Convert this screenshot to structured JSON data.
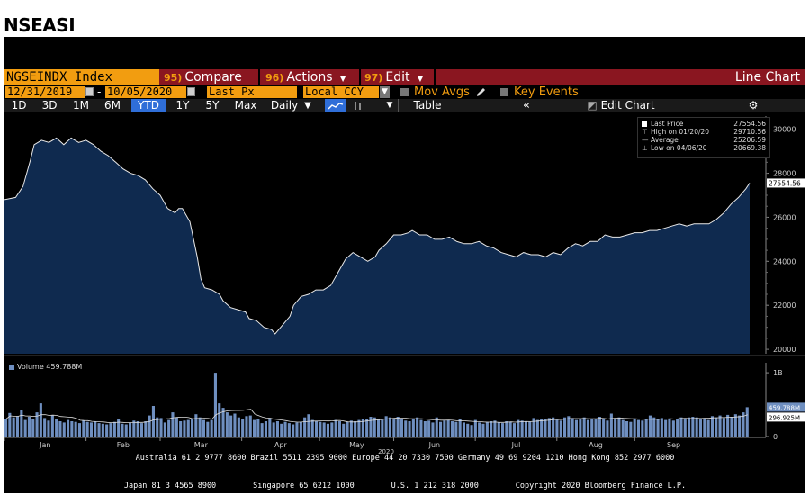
{
  "page_title": "NSEASI",
  "toolbar": {
    "ticker": "NGSEINDX Index",
    "compare": {
      "num": "95)",
      "label": "Compare"
    },
    "actions": {
      "num": "96)",
      "label": "Actions"
    },
    "edit": {
      "num": "97)",
      "label": "Edit"
    },
    "chart_type": "Line Chart"
  },
  "settings": {
    "start_date": "12/31/2019",
    "end_date": "10/05/2020",
    "price_field": "Last Px",
    "currency": "Local CCY",
    "mov_avgs": "Mov Avgs",
    "key_events": "Key Events"
  },
  "periods": [
    "1D",
    "3D",
    "1M",
    "6M",
    "YTD",
    "1Y",
    "5Y",
    "Max"
  ],
  "active_period": "YTD",
  "frequency": "Daily",
  "table_label": "Table",
  "edit_chart_label": "Edit Chart",
  "legend": {
    "last_price_label": "Last Price",
    "last_price": "27554.56",
    "high_label": "High on 01/20/20",
    "high": "29710.56",
    "average_label": "Average",
    "average": "25206.59",
    "low_label": "Low on 04/06/20",
    "low": "20669.38"
  },
  "last_price_tag": "27554.56",
  "volume": {
    "legend": "Volume 459.788M",
    "last_tag": "459.788M",
    "avg_tag": "296.925M",
    "axis_ticks": [
      "1B",
      "0"
    ]
  },
  "footer": {
    "line1": "Australia 61 2 9777 8600 Brazil 5511 2395 9000 Europe 44 20 7330 7500 Germany 49 69 9204 1210 Hong Kong 852 2977 6000",
    "line2": "Japan 81 3 4565 8900        Singapore 65 6212 1000        U.S. 1 212 318 2000        Copyright 2020 Bloomberg Finance L.P."
  },
  "colors": {
    "ticker_bg": "#f29d10",
    "header_bg": "#8a1620",
    "active_tab": "#2f6ed8",
    "area_fill": "#0f2a4f",
    "line": "#e8e8e8",
    "volume_bar": "#6f8fc0"
  },
  "chart_data": {
    "type": "area",
    "title": "",
    "y_ticks": [
      20000,
      22000,
      24000,
      26000,
      28000,
      30000
    ],
    "ylim": [
      19800,
      30600
    ],
    "x_month_labels": [
      "Jan",
      "Feb",
      "Mar",
      "Apr",
      "May",
      "Jun",
      "Jul",
      "Aug",
      "Sep"
    ],
    "x_year_label": "2020",
    "price_series": [
      [
        0,
        26800
      ],
      [
        3,
        26900
      ],
      [
        5,
        27400
      ],
      [
        7,
        28600
      ],
      [
        8,
        29300
      ],
      [
        10,
        29500
      ],
      [
        12,
        29400
      ],
      [
        14,
        29600
      ],
      [
        16,
        29300
      ],
      [
        18,
        29600
      ],
      [
        20,
        29400
      ],
      [
        22,
        29500
      ],
      [
        24,
        29300
      ],
      [
        26,
        29000
      ],
      [
        28,
        28800
      ],
      [
        30,
        28500
      ],
      [
        32,
        28200
      ],
      [
        34,
        28000
      ],
      [
        36,
        27900
      ],
      [
        38,
        27700
      ],
      [
        40,
        27300
      ],
      [
        42,
        27000
      ],
      [
        44,
        26400
      ],
      [
        46,
        26200
      ],
      [
        47,
        26400
      ],
      [
        48,
        26400
      ],
      [
        50,
        25800
      ],
      [
        51,
        25000
      ],
      [
        52,
        24200
      ],
      [
        53,
        23200
      ],
      [
        54,
        22800
      ],
      [
        56,
        22700
      ],
      [
        58,
        22500
      ],
      [
        59,
        22200
      ],
      [
        61,
        21900
      ],
      [
        63,
        21800
      ],
      [
        65,
        21700
      ],
      [
        66,
        21400
      ],
      [
        68,
        21300
      ],
      [
        70,
        21000
      ],
      [
        72,
        20900
      ],
      [
        73,
        20700
      ],
      [
        75,
        21100
      ],
      [
        77,
        21500
      ],
      [
        78,
        22000
      ],
      [
        80,
        22400
      ],
      [
        82,
        22500
      ],
      [
        84,
        22700
      ],
      [
        86,
        22700
      ],
      [
        88,
        22900
      ],
      [
        90,
        23500
      ],
      [
        92,
        24100
      ],
      [
        94,
        24400
      ],
      [
        96,
        24200
      ],
      [
        98,
        24000
      ],
      [
        100,
        24200
      ],
      [
        101,
        24500
      ],
      [
        103,
        24800
      ],
      [
        105,
        25200
      ],
      [
        107,
        25200
      ],
      [
        109,
        25300
      ],
      [
        110,
        25400
      ],
      [
        112,
        25200
      ],
      [
        114,
        25200
      ],
      [
        116,
        25000
      ],
      [
        118,
        25000
      ],
      [
        120,
        25100
      ],
      [
        122,
        24900
      ],
      [
        124,
        24800
      ],
      [
        126,
        24800
      ],
      [
        128,
        24900
      ],
      [
        130,
        24700
      ],
      [
        132,
        24600
      ],
      [
        134,
        24400
      ],
      [
        136,
        24300
      ],
      [
        138,
        24200
      ],
      [
        140,
        24400
      ],
      [
        142,
        24300
      ],
      [
        144,
        24300
      ],
      [
        146,
        24200
      ],
      [
        148,
        24400
      ],
      [
        150,
        24300
      ],
      [
        152,
        24600
      ],
      [
        154,
        24800
      ],
      [
        156,
        24700
      ],
      [
        158,
        24900
      ],
      [
        160,
        24900
      ],
      [
        162,
        25200
      ],
      [
        164,
        25100
      ],
      [
        166,
        25100
      ],
      [
        168,
        25200
      ],
      [
        170,
        25300
      ],
      [
        172,
        25300
      ],
      [
        174,
        25400
      ],
      [
        176,
        25400
      ],
      [
        178,
        25500
      ],
      [
        180,
        25600
      ],
      [
        182,
        25700
      ],
      [
        184,
        25600
      ],
      [
        186,
        25700
      ],
      [
        188,
        25700
      ],
      [
        190,
        25700
      ],
      [
        192,
        25900
      ],
      [
        194,
        26200
      ],
      [
        196,
        26600
      ],
      [
        198,
        26900
      ],
      [
        200,
        27300
      ],
      [
        201,
        27554.56
      ]
    ],
    "volume_series_millions": [
      280,
      370,
      300,
      320,
      410,
      260,
      310,
      280,
      380,
      520,
      290,
      250,
      330,
      280,
      240,
      220,
      260,
      240,
      230,
      210,
      250,
      230,
      220,
      240,
      210,
      200,
      190,
      210,
      230,
      280,
      200,
      190,
      220,
      250,
      240,
      210,
      240,
      330,
      480,
      300,
      290,
      220,
      260,
      380,
      300,
      240,
      250,
      260,
      280,
      350,
      300,
      260,
      230,
      260,
      1000,
      520,
      450,
      380,
      330,
      360,
      300,
      280,
      320,
      330,
      260,
      280,
      210,
      240,
      290,
      220,
      240,
      200,
      230,
      210,
      190,
      220,
      230,
      300,
      350,
      260,
      240,
      230,
      220,
      200,
      220,
      260,
      240,
      200,
      230,
      250,
      240,
      260,
      270,
      280,
      310,
      300,
      280,
      260,
      320,
      300,
      280,
      310,
      270,
      250,
      240,
      280,
      300,
      260,
      240,
      250,
      220,
      300,
      230,
      250,
      260,
      240,
      230,
      270,
      220,
      200,
      180,
      260,
      220,
      200,
      230,
      240,
      250,
      220,
      210,
      240,
      230,
      210,
      260,
      250,
      240,
      230,
      290,
      260,
      270,
      280,
      290,
      300,
      260,
      250,
      300,
      320,
      290,
      260,
      270,
      300,
      260,
      280,
      270,
      310,
      280,
      250,
      360,
      290,
      300,
      260,
      240,
      230,
      280,
      260,
      250,
      270,
      330,
      300,
      280,
      290,
      260,
      270,
      250,
      280,
      300,
      290,
      300,
      310,
      300,
      280,
      290,
      260,
      320,
      300,
      330,
      290,
      340,
      310,
      350,
      330,
      380,
      460
    ]
  }
}
